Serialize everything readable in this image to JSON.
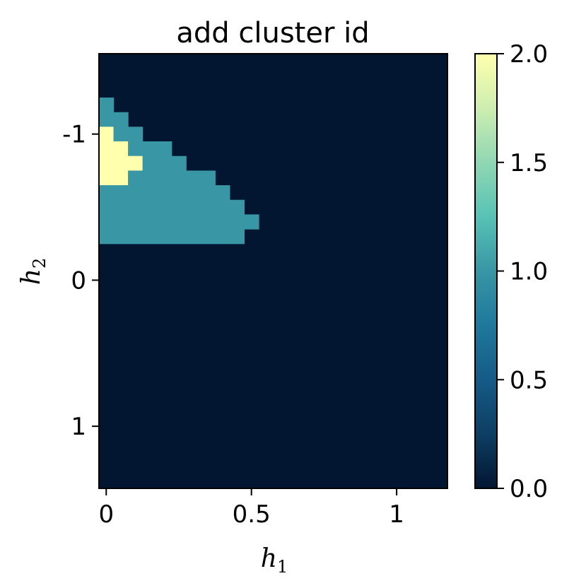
{
  "chart_data": {
    "type": "heatmap",
    "title": "add cluster id",
    "xlabel": {
      "base": "h",
      "sub": "1"
    },
    "ylabel": {
      "base": "h",
      "sub": "2"
    },
    "xlim": [
      -0.025,
      1.175
    ],
    "ylim": [
      1.425,
      -1.55
    ],
    "y_inverted": true,
    "x_ticks": [
      {
        "value": 0,
        "label": "0"
      },
      {
        "value": 0.5,
        "label": "0.5"
      },
      {
        "value": 1,
        "label": "1"
      }
    ],
    "y_ticks": [
      {
        "value": -1,
        "label": "-1"
      },
      {
        "value": 0,
        "label": "0"
      },
      {
        "value": 1,
        "label": "1"
      }
    ],
    "grid": false,
    "cell": {
      "x_start": -0.025,
      "dx": 0.05,
      "y_start": -1.55,
      "dy": 0.1
    },
    "background_value": 0,
    "cell_runs": [
      {
        "row": 3,
        "col_start": 0,
        "col_end": 0,
        "value": 1
      },
      {
        "row": 4,
        "col_start": 0,
        "col_end": 1,
        "value": 1
      },
      {
        "row": 5,
        "col_start": 0,
        "col_end": 0,
        "value": 2
      },
      {
        "row": 5,
        "col_start": 1,
        "col_end": 2,
        "value": 1
      },
      {
        "row": 6,
        "col_start": 0,
        "col_end": 1,
        "value": 2
      },
      {
        "row": 6,
        "col_start": 2,
        "col_end": 4,
        "value": 1
      },
      {
        "row": 7,
        "col_start": 0,
        "col_end": 2,
        "value": 2
      },
      {
        "row": 7,
        "col_start": 3,
        "col_end": 5,
        "value": 1
      },
      {
        "row": 8,
        "col_start": 0,
        "col_end": 1,
        "value": 2
      },
      {
        "row": 8,
        "col_start": 2,
        "col_end": 7,
        "value": 1
      },
      {
        "row": 9,
        "col_start": 0,
        "col_end": 8,
        "value": 1
      },
      {
        "row": 10,
        "col_start": 0,
        "col_end": 9,
        "value": 1
      },
      {
        "row": 11,
        "col_start": 0,
        "col_end": 10,
        "value": 1
      },
      {
        "row": 12,
        "col_start": 0,
        "col_end": 9,
        "value": 1
      }
    ],
    "colorbar": {
      "min": 0,
      "max": 2,
      "ticks": [
        {
          "value": 0,
          "label": "0.0"
        },
        {
          "value": 0.5,
          "label": "0.5"
        },
        {
          "value": 1,
          "label": "1.0"
        },
        {
          "value": 1.5,
          "label": "1.5"
        },
        {
          "value": 2,
          "label": "2.0"
        }
      ],
      "colormap": "YlGnBu_r",
      "colors": [
        "#081d58",
        "#253494",
        "#225ea8",
        "#1d91c0",
        "#41b6c4",
        "#7fcdbb",
        "#c7e9b4",
        "#edf8b1",
        "#ffffd9"
      ],
      "stops": [
        {
          "v": 0.0,
          "color": "#031631"
        },
        {
          "v": 0.25,
          "color": "#0d3e63"
        },
        {
          "v": 0.5,
          "color": "#155b87"
        },
        {
          "v": 0.75,
          "color": "#1f789c"
        },
        {
          "v": 1.0,
          "color": "#3896a5"
        },
        {
          "v": 1.25,
          "color": "#58c2b4"
        },
        {
          "v": 1.5,
          "color": "#90d7b3"
        },
        {
          "v": 1.75,
          "color": "#cdeeb0"
        },
        {
          "v": 2.0,
          "color": "#ffffad"
        }
      ]
    }
  }
}
